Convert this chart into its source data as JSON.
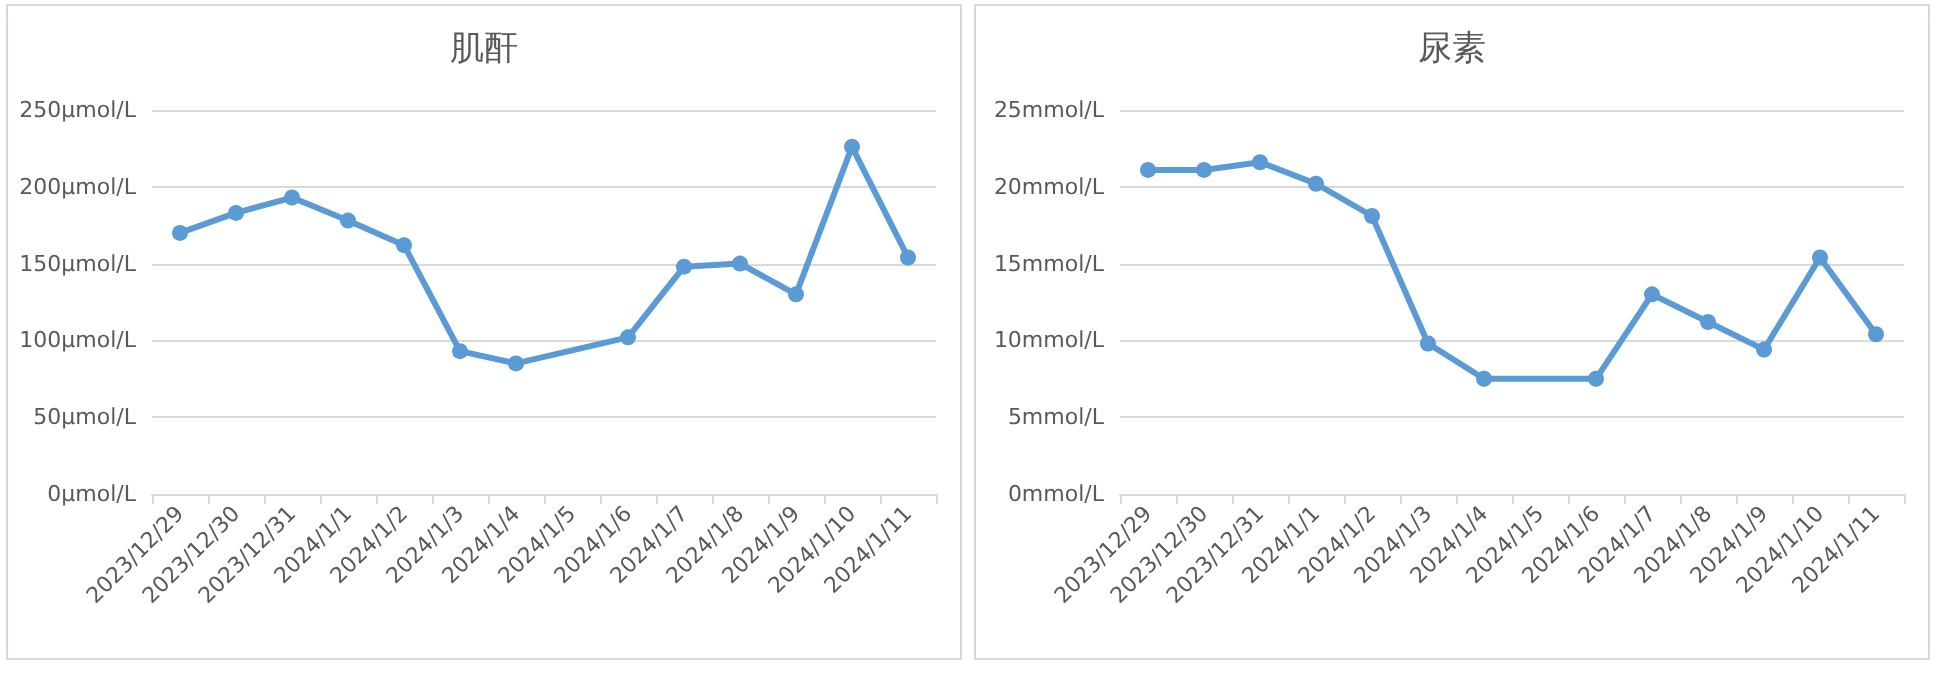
{
  "chart_data": [
    {
      "type": "line",
      "title": "肌酐",
      "categories": [
        "2023/12/29",
        "2023/12/30",
        "2023/12/31",
        "2024/1/1",
        "2024/1/2",
        "2024/1/3",
        "2024/1/4",
        "2024/1/5",
        "2024/1/6",
        "2024/1/7",
        "2024/1/8",
        "2024/1/9",
        "2024/1/10",
        "2024/1/11"
      ],
      "series": [
        {
          "color": "#5b9bd5",
          "values": [
            170,
            183,
            193,
            178,
            162,
            93,
            85,
            null,
            102,
            148,
            150,
            130,
            226,
            154
          ]
        }
      ],
      "ylim": [
        0,
        250
      ],
      "yticks": [
        {
          "value": 0,
          "label": "0μmol/L"
        },
        {
          "value": 50,
          "label": "50μmol/L"
        },
        {
          "value": 100,
          "label": "100μmol/L"
        },
        {
          "value": 150,
          "label": "150μmol/L"
        },
        {
          "value": 200,
          "label": "200μmol/L"
        },
        {
          "value": 250,
          "label": "250μmol/L"
        }
      ],
      "grid": "y",
      "marker": "circle",
      "line_style": "solid"
    },
    {
      "type": "line",
      "title": "尿素",
      "categories": [
        "2023/12/29",
        "2023/12/30",
        "2023/12/31",
        "2024/1/1",
        "2024/1/2",
        "2024/1/3",
        "2024/1/4",
        "2024/1/5",
        "2024/1/6",
        "2024/1/7",
        "2024/1/8",
        "2024/1/9",
        "2024/1/10",
        "2024/1/11"
      ],
      "series": [
        {
          "color": "#5b9bd5",
          "values": [
            21.1,
            21.1,
            21.6,
            20.2,
            18.1,
            9.8,
            7.5,
            null,
            7.5,
            13.0,
            11.2,
            9.4,
            15.4,
            10.4
          ]
        }
      ],
      "ylim": [
        0,
        25
      ],
      "yticks": [
        {
          "value": 0,
          "label": "0mmol/L"
        },
        {
          "value": 5,
          "label": "5mmol/L"
        },
        {
          "value": 10,
          "label": "10mmol/L"
        },
        {
          "value": 15,
          "label": "15mmol/L"
        },
        {
          "value": 20,
          "label": "20mmol/L"
        },
        {
          "value": 25,
          "label": "25mmol/L"
        }
      ],
      "grid": "y",
      "marker": "circle",
      "line_style": "solid"
    }
  ]
}
